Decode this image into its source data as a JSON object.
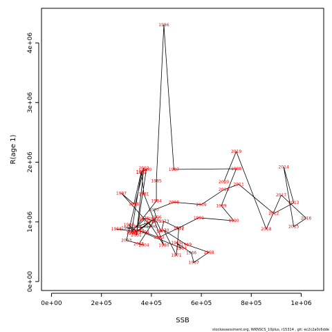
{
  "chart_data": {
    "type": "line",
    "xlabel": "SSB",
    "ylabel": "R(age 1)",
    "xlim": [
      -40000,
      1090000
    ],
    "ylim": [
      -150000,
      4580000
    ],
    "x_ticks": [
      {
        "value": 0,
        "label": "0e+00"
      },
      {
        "value": 200000,
        "label": "2e+05"
      },
      {
        "value": 400000,
        "label": "4e+05"
      },
      {
        "value": 600000,
        "label": "6e+05"
      },
      {
        "value": 800000,
        "label": "8e+05"
      },
      {
        "value": 1000000,
        "label": "1e+06"
      }
    ],
    "y_ticks": [
      {
        "value": 0,
        "label": "0e+00"
      },
      {
        "value": 1000000,
        "label": "1e+06"
      },
      {
        "value": 2000000,
        "label": "2e+06"
      },
      {
        "value": 3000000,
        "label": "3e+06"
      },
      {
        "value": 4000000,
        "label": "4e+06"
      }
    ],
    "line_color": "#000000",
    "label_color": "#ff0000",
    "grid": false,
    "points": [
      {
        "year": "1958",
        "x": 260000,
        "y": 880000
      },
      {
        "year": "1959",
        "x": 340000,
        "y": 840000
      },
      {
        "year": "1960",
        "x": 310000,
        "y": 950000
      },
      {
        "year": "1961",
        "x": 330000,
        "y": 810000
      },
      {
        "year": "1962",
        "x": 410000,
        "y": 1050000
      },
      {
        "year": "1963",
        "x": 350000,
        "y": 850000
      },
      {
        "year": "1964",
        "x": 520000,
        "y": 560000
      },
      {
        "year": "1965",
        "x": 500000,
        "y": 650000
      },
      {
        "year": "1966",
        "x": 560000,
        "y": 480000
      },
      {
        "year": "1967",
        "x": 570000,
        "y": 320000
      },
      {
        "year": "1968",
        "x": 630000,
        "y": 490000
      },
      {
        "year": "1969",
        "x": 540000,
        "y": 620000
      },
      {
        "year": "1970",
        "x": 450000,
        "y": 860000
      },
      {
        "year": "1971",
        "x": 500000,
        "y": 440000
      },
      {
        "year": "1972",
        "x": 510000,
        "y": 890000
      },
      {
        "year": "1973",
        "x": 450000,
        "y": 1010000
      },
      {
        "year": "1974",
        "x": 440000,
        "y": 840000
      },
      {
        "year": "1975",
        "x": 420000,
        "y": 1010000
      },
      {
        "year": "1976",
        "x": 370000,
        "y": 1060000
      },
      {
        "year": "1977",
        "x": 370000,
        "y": 1030000
      },
      {
        "year": "1978",
        "x": 340000,
        "y": 920000
      },
      {
        "year": "1979",
        "x": 390000,
        "y": 990000
      },
      {
        "year": "1980",
        "x": 450000,
        "y": 610000
      },
      {
        "year": "1981",
        "x": 370000,
        "y": 1470000
      },
      {
        "year": "1982",
        "x": 360000,
        "y": 1830000
      },
      {
        "year": "1983",
        "x": 320000,
        "y": 820000
      },
      {
        "year": "1984",
        "x": 420000,
        "y": 1350000
      },
      {
        "year": "1985",
        "x": 420000,
        "y": 1690000
      },
      {
        "year": "1986",
        "x": 450000,
        "y": 4300000
      },
      {
        "year": "1987",
        "x": 490000,
        "y": 1880000
      },
      {
        "year": "1988",
        "x": 740000,
        "y": 1890000
      },
      {
        "year": "1989",
        "x": 680000,
        "y": 1270000
      },
      {
        "year": "1990",
        "x": 730000,
        "y": 1020000
      },
      {
        "year": "1991",
        "x": 590000,
        "y": 1070000
      },
      {
        "year": "1992",
        "x": 510000,
        "y": 900000
      },
      {
        "year": "1993",
        "x": 430000,
        "y": 740000
      },
      {
        "year": "1994",
        "x": 370000,
        "y": 830000
      },
      {
        "year": "1995",
        "x": 300000,
        "y": 900000
      },
      {
        "year": "1996",
        "x": 400000,
        "y": 920000
      },
      {
        "year": "1997",
        "x": 280000,
        "y": 1480000
      },
      {
        "year": "1998",
        "x": 330000,
        "y": 1300000
      },
      {
        "year": "1999",
        "x": 360000,
        "y": 1840000
      },
      {
        "year": "2000",
        "x": 380000,
        "y": 1880000
      },
      {
        "year": "2001",
        "x": 340000,
        "y": 780000
      },
      {
        "year": "2002",
        "x": 370000,
        "y": 1900000
      },
      {
        "year": "2003",
        "x": 300000,
        "y": 690000
      },
      {
        "year": "2004",
        "x": 370000,
        "y": 610000
      },
      {
        "year": "2005",
        "x": 350000,
        "y": 630000
      },
      {
        "year": "2006",
        "x": 420000,
        "y": 1080000
      },
      {
        "year": "2007",
        "x": 410000,
        "y": 1200000
      },
      {
        "year": "2008",
        "x": 490000,
        "y": 1330000
      },
      {
        "year": "2009",
        "x": 600000,
        "y": 1290000
      },
      {
        "year": "2010",
        "x": 690000,
        "y": 1540000
      },
      {
        "year": "2011",
        "x": 750000,
        "y": 1630000
      },
      {
        "year": "2012",
        "x": 890000,
        "y": 1140000
      },
      {
        "year": "2013",
        "x": 970000,
        "y": 1320000
      },
      {
        "year": "2014",
        "x": 930000,
        "y": 1920000
      },
      {
        "year": "2015",
        "x": 970000,
        "y": 920000
      },
      {
        "year": "2016",
        "x": 1020000,
        "y": 1060000
      },
      {
        "year": "2017",
        "x": 920000,
        "y": 1450000
      },
      {
        "year": "2018",
        "x": 860000,
        "y": 880000
      },
      {
        "year": "2019",
        "x": 740000,
        "y": 2180000
      },
      {
        "year": "2020",
        "x": 690000,
        "y": 1670000
      }
    ]
  },
  "footer_text": "stockassessment.org, WKNSCS_10plus, r15314 , git: ec2c2a0c6dde"
}
